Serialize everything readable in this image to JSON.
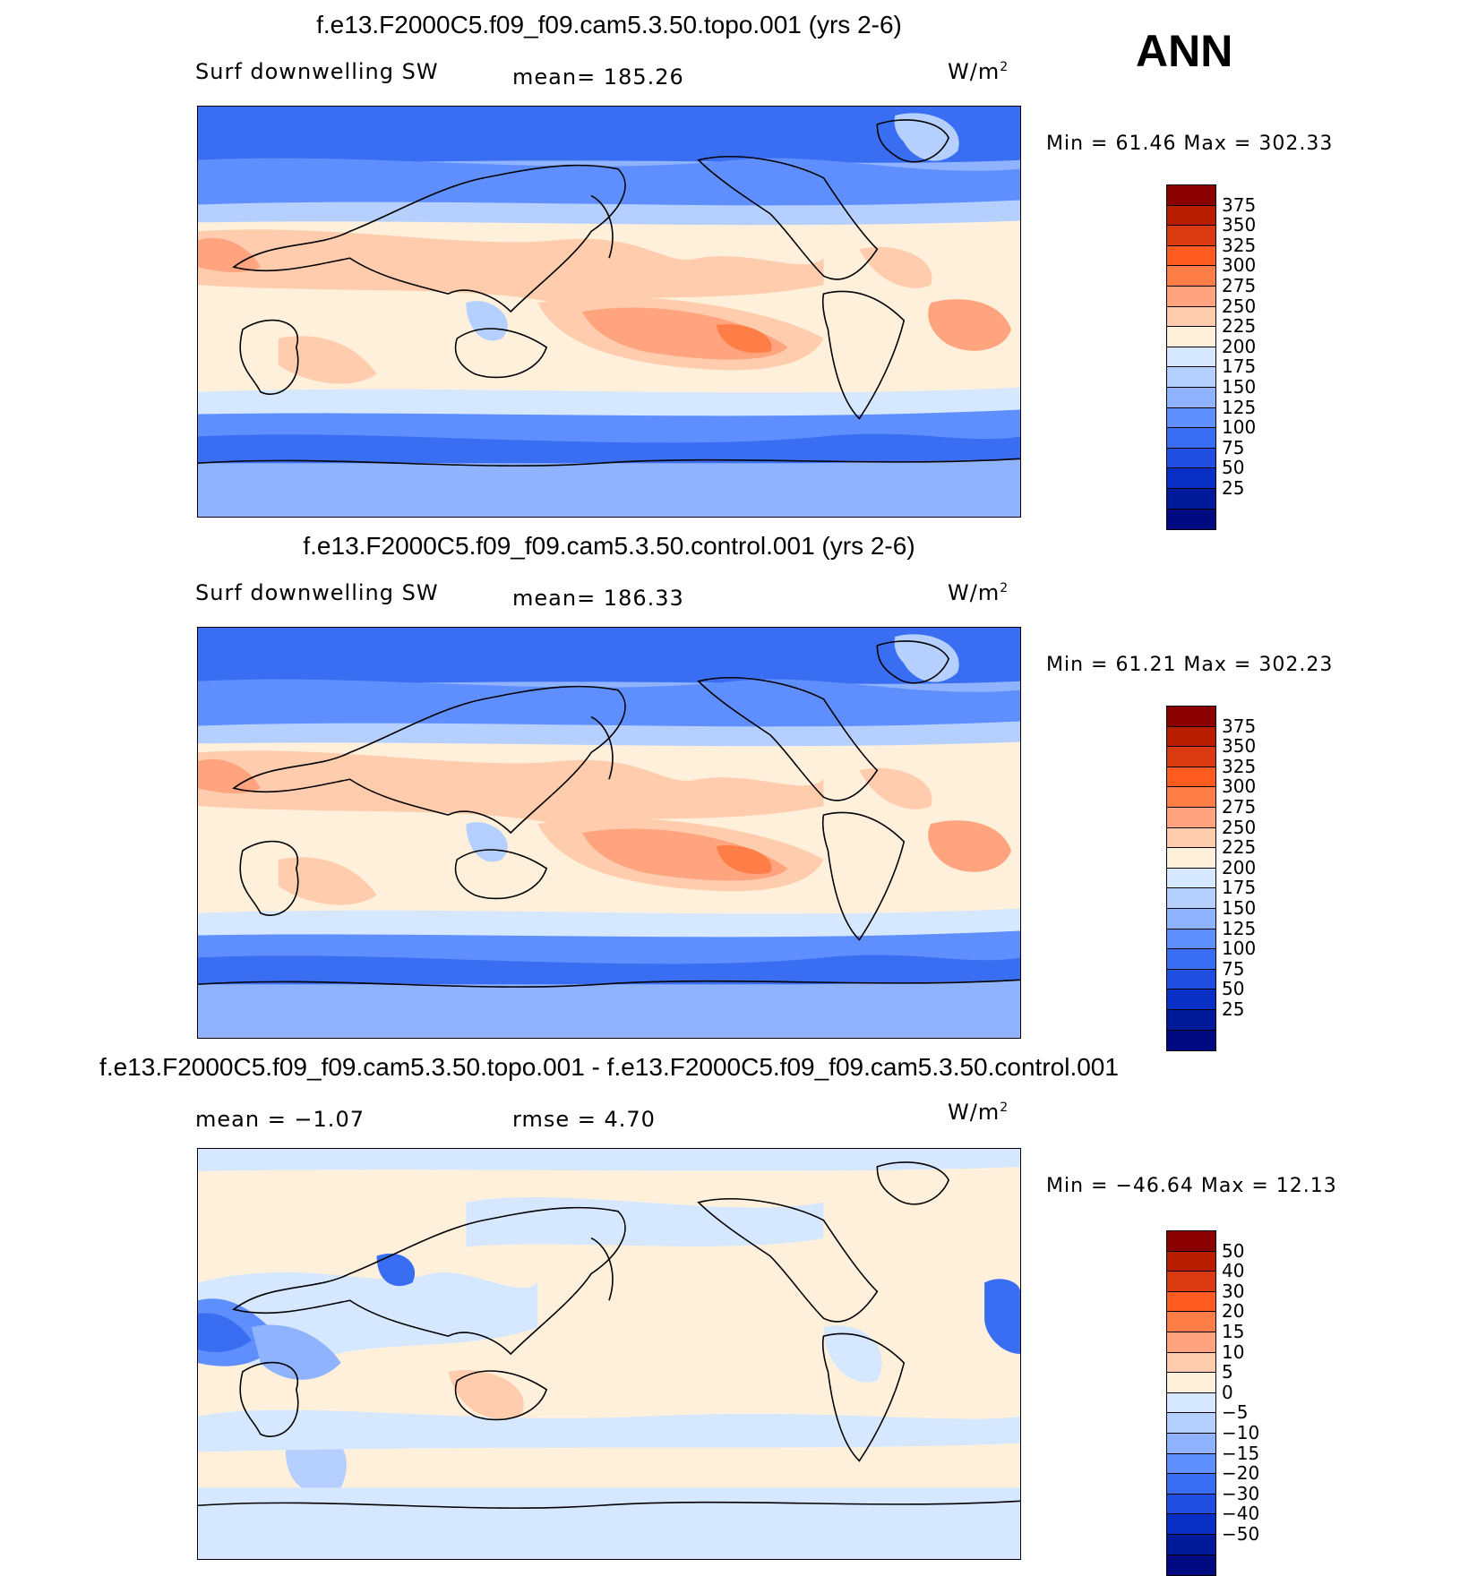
{
  "season": "ANN",
  "panels": [
    {
      "title": "f.e13.F2000C5.f09_f09.cam5.3.50.topo.001 (yrs 2-6)",
      "variable": "Surf downwelling SW",
      "stat1": "mean= 185.26",
      "stat2": "",
      "units": "W/m",
      "units_sup": "2",
      "minmax": "Min =   61.46 Max = 302.33"
    },
    {
      "title": "f.e13.F2000C5.f09_f09.cam5.3.50.control.001 (yrs 2-6)",
      "variable": "Surf downwelling SW",
      "stat1": "mean= 186.33",
      "stat2": "",
      "units": "W/m",
      "units_sup": "2",
      "minmax": "Min =   61.21 Max = 302.23"
    },
    {
      "title": "f.e13.F2000C5.f09_f09.cam5.3.50.topo.001 - f.e13.F2000C5.f09_f09.cam5.3.50.control.001",
      "variable": "mean =   −1.07",
      "stat1": "rmse =    4.70",
      "stat2": "",
      "units": "W/m",
      "units_sup": "2",
      "minmax": "Min = −46.64 Max =   12.13"
    }
  ],
  "colorbars": {
    "absolute": {
      "labels": [
        "375",
        "350",
        "325",
        "300",
        "275",
        "250",
        "225",
        "200",
        "175",
        "150",
        "125",
        "100",
        "75",
        "50",
        "25"
      ],
      "colors": [
        "#8b0000",
        "#b81d00",
        "#d93a10",
        "#ff5a1f",
        "#ff7e47",
        "#ffa47e",
        "#ffccad",
        "#fff0dc",
        "#d6e8ff",
        "#b5d0ff",
        "#8fb3ff",
        "#5f8fff",
        "#3a6ef2",
        "#1f4ee0",
        "#0a2fc4",
        "#001a99",
        "#000a80"
      ]
    },
    "difference": {
      "labels": [
        "50",
        "40",
        "30",
        "20",
        "15",
        "10",
        "5",
        "0",
        "−5",
        "−10",
        "−15",
        "−20",
        "−30",
        "−40",
        "−50"
      ],
      "colors": [
        "#8b0000",
        "#b81d00",
        "#d93a10",
        "#ff5a1f",
        "#ff7e47",
        "#ffa47e",
        "#ffccad",
        "#fff0dc",
        "#d6e8ff",
        "#b5d0ff",
        "#8fb3ff",
        "#5f8fff",
        "#3a6ef2",
        "#1f4ee0",
        "#0a2fc4",
        "#001a99",
        "#000a80"
      ]
    }
  }
}
